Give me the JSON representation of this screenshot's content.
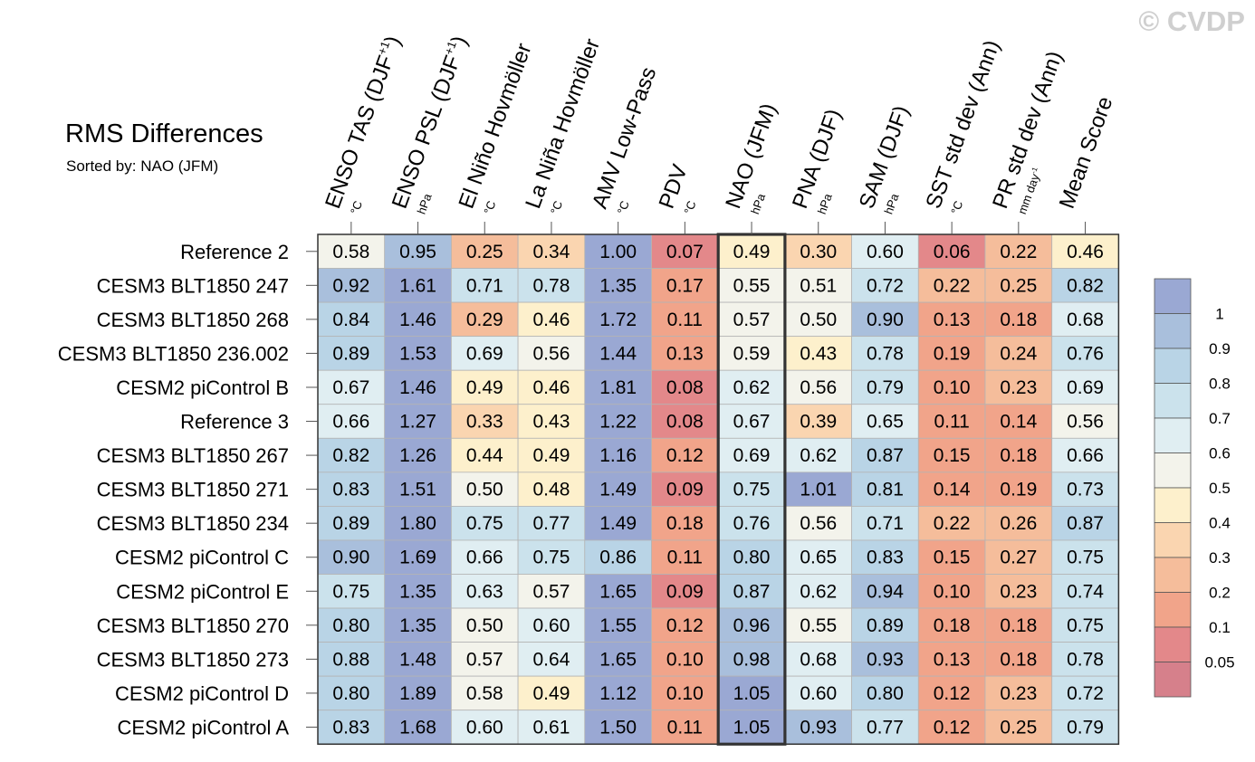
{
  "chart_data": {
    "type": "heatmap",
    "title": "RMS Differences",
    "subtitle": "Sorted by: NAO (JFM)",
    "watermark": "© CVDP",
    "highlighted_column": "NAO (JFM)",
    "columns": [
      {
        "label": "ENSO TAS (DJF",
        "sup": "+1",
        "close": ")",
        "unit": "°C"
      },
      {
        "label": "ENSO PSL (DJF",
        "sup": "+1",
        "close": ")",
        "unit": "hPa"
      },
      {
        "label": "El Niño Hovmöller",
        "sup": "",
        "close": "",
        "unit": "°C"
      },
      {
        "label": "La Niña Hovmöller",
        "sup": "",
        "close": "",
        "unit": "°C"
      },
      {
        "label": "AMV Low-Pass",
        "sup": "",
        "close": "",
        "unit": "°C"
      },
      {
        "label": "PDV",
        "sup": "",
        "close": "",
        "unit": "°C"
      },
      {
        "label": "NAO (JFM)",
        "sup": "",
        "close": "",
        "unit": "hPa"
      },
      {
        "label": "PNA (DJF)",
        "sup": "",
        "close": "",
        "unit": "hPa"
      },
      {
        "label": "SAM (DJF)",
        "sup": "",
        "close": "",
        "unit": "hPa"
      },
      {
        "label": "SST std dev (Ann)",
        "sup": "",
        "close": "",
        "unit": "°C"
      },
      {
        "label": "PR std dev (Ann)",
        "sup": "",
        "close": "",
        "unit": "mm day-1"
      },
      {
        "label": "Mean Score",
        "sup": "",
        "close": "",
        "unit": ""
      }
    ],
    "rows": [
      {
        "name": "Reference 2",
        "values": [
          "0.58",
          "0.95",
          "0.25",
          "0.34",
          "1.00",
          "0.07",
          "0.49",
          "0.30",
          "0.60",
          "0.06",
          "0.22",
          "0.46"
        ]
      },
      {
        "name": "CESM3 BLT1850 247",
        "values": [
          "0.92",
          "1.61",
          "0.71",
          "0.78",
          "1.35",
          "0.17",
          "0.55",
          "0.51",
          "0.72",
          "0.22",
          "0.25",
          "0.82"
        ]
      },
      {
        "name": "CESM3 BLT1850 268",
        "values": [
          "0.84",
          "1.46",
          "0.29",
          "0.46",
          "1.72",
          "0.11",
          "0.57",
          "0.50",
          "0.90",
          "0.13",
          "0.18",
          "0.68"
        ]
      },
      {
        "name": "CESM3 BLT1850 236.002",
        "values": [
          "0.89",
          "1.53",
          "0.69",
          "0.56",
          "1.44",
          "0.13",
          "0.59",
          "0.43",
          "0.78",
          "0.19",
          "0.24",
          "0.76"
        ]
      },
      {
        "name": "CESM2 piControl B",
        "values": [
          "0.67",
          "1.46",
          "0.49",
          "0.46",
          "1.81",
          "0.08",
          "0.62",
          "0.56",
          "0.79",
          "0.10",
          "0.23",
          "0.69"
        ]
      },
      {
        "name": "Reference 3",
        "values": [
          "0.66",
          "1.27",
          "0.33",
          "0.43",
          "1.22",
          "0.08",
          "0.67",
          "0.39",
          "0.65",
          "0.11",
          "0.14",
          "0.56"
        ]
      },
      {
        "name": "CESM3 BLT1850 267",
        "values": [
          "0.82",
          "1.26",
          "0.44",
          "0.49",
          "1.16",
          "0.12",
          "0.69",
          "0.62",
          "0.87",
          "0.15",
          "0.18",
          "0.66"
        ]
      },
      {
        "name": "CESM3 BLT1850 271",
        "values": [
          "0.83",
          "1.51",
          "0.50",
          "0.48",
          "1.49",
          "0.09",
          "0.75",
          "1.01",
          "0.81",
          "0.14",
          "0.19",
          "0.73"
        ]
      },
      {
        "name": "CESM3 BLT1850 234",
        "values": [
          "0.89",
          "1.80",
          "0.75",
          "0.77",
          "1.49",
          "0.18",
          "0.76",
          "0.56",
          "0.71",
          "0.22",
          "0.26",
          "0.87"
        ]
      },
      {
        "name": "CESM2 piControl C",
        "values": [
          "0.90",
          "1.69",
          "0.66",
          "0.75",
          "0.86",
          "0.11",
          "0.80",
          "0.65",
          "0.83",
          "0.15",
          "0.27",
          "0.75"
        ]
      },
      {
        "name": "CESM2 piControl E",
        "values": [
          "0.75",
          "1.35",
          "0.63",
          "0.57",
          "1.65",
          "0.09",
          "0.87",
          "0.62",
          "0.94",
          "0.10",
          "0.23",
          "0.74"
        ]
      },
      {
        "name": "CESM3 BLT1850 270",
        "values": [
          "0.80",
          "1.35",
          "0.50",
          "0.60",
          "1.55",
          "0.12",
          "0.96",
          "0.55",
          "0.89",
          "0.18",
          "0.18",
          "0.75"
        ]
      },
      {
        "name": "CESM3 BLT1850 273",
        "values": [
          "0.88",
          "1.48",
          "0.57",
          "0.64",
          "1.65",
          "0.10",
          "0.98",
          "0.68",
          "0.93",
          "0.13",
          "0.18",
          "0.78"
        ]
      },
      {
        "name": "CESM2 piControl D",
        "values": [
          "0.80",
          "1.89",
          "0.58",
          "0.49",
          "1.12",
          "0.10",
          "1.05",
          "0.60",
          "0.80",
          "0.12",
          "0.23",
          "0.72"
        ]
      },
      {
        "name": "CESM2 piControl A",
        "values": [
          "0.83",
          "1.68",
          "0.60",
          "0.61",
          "1.50",
          "0.11",
          "1.05",
          "0.93",
          "0.77",
          "0.12",
          "0.25",
          "0.79"
        ]
      }
    ],
    "colorbar": {
      "levels": [
        0.05,
        0.1,
        0.2,
        0.3,
        0.4,
        0.5,
        0.6,
        0.7,
        0.8,
        0.9,
        1
      ],
      "labels": [
        "0.05",
        "0.1",
        "0.2",
        "0.3",
        "0.4",
        "0.5",
        "0.6",
        "0.7",
        "0.8",
        "0.9",
        "1"
      ],
      "colors": [
        "#d6808b",
        "#e3888a",
        "#f1a48a",
        "#f5bd9b",
        "#fad5b0",
        "#fdf0cc",
        "#f3f3eb",
        "#e0eef2",
        "#cbe2ec",
        "#b9d4e6",
        "#a9bfdc",
        "#9aa8d3"
      ]
    }
  }
}
